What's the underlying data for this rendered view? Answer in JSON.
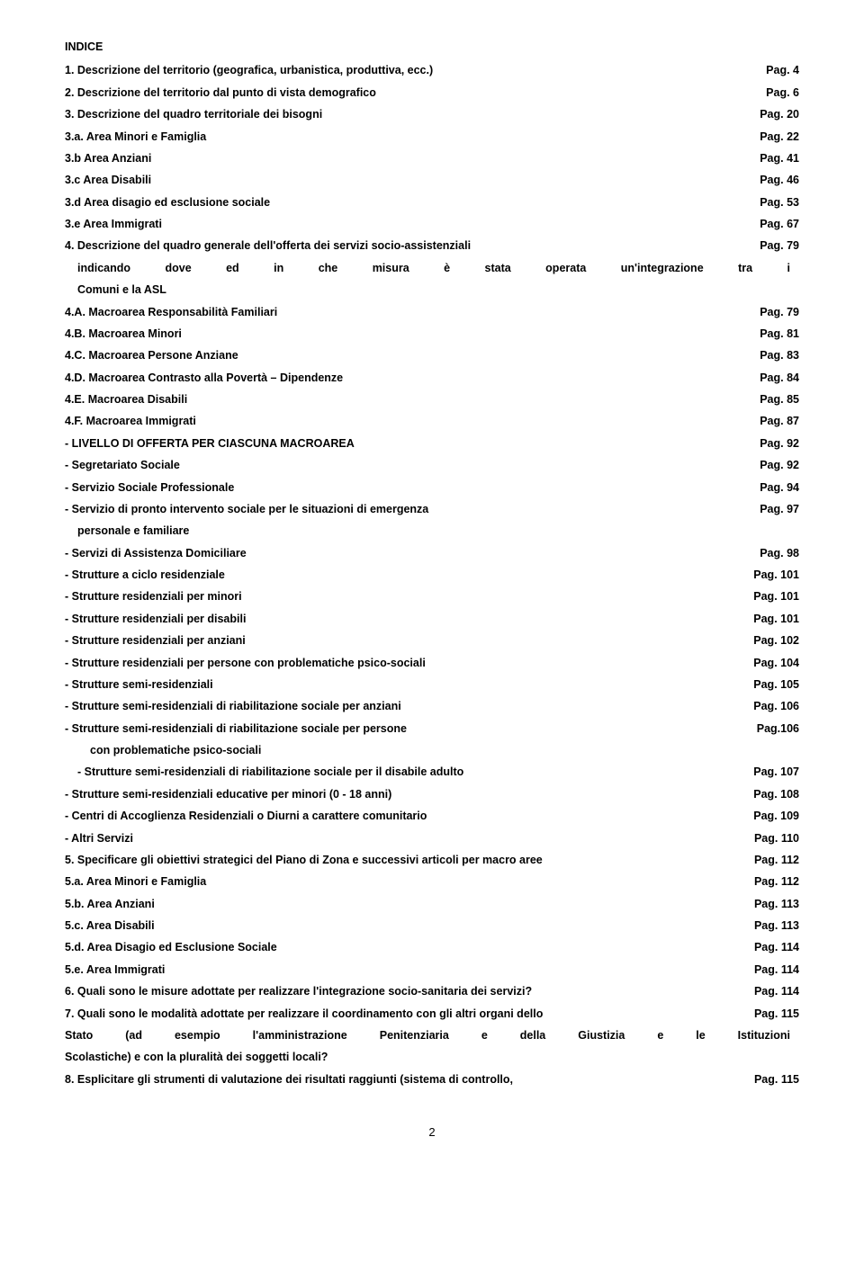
{
  "title": "INDICE",
  "entries": [
    {
      "label": "1. Descrizione del territorio (geografica, urbanistica, produttiva, ecc.)",
      "page": "Pag. 4",
      "indent": 0
    },
    {
      "label": "2. Descrizione del territorio dal punto di vista demografico",
      "page": "Pag. 6",
      "indent": 0
    },
    {
      "label": "3. Descrizione del quadro territoriale dei bisogni",
      "page": "Pag. 20",
      "indent": 0
    },
    {
      "label": "3.a. Area Minori e Famiglia",
      "page": "Pag. 22",
      "indent": 0
    },
    {
      "label": "3.b Area Anziani",
      "page": "Pag. 41",
      "indent": 0
    },
    {
      "label": "3.c Area Disabili",
      "page": "Pag. 46",
      "indent": 0
    },
    {
      "label": "3.d Area disagio ed esclusione sociale",
      "page": "Pag. 53",
      "indent": 0
    },
    {
      "label": "3.e Area Immigrati",
      "page": "Pag. 67",
      "indent": 0
    },
    {
      "label": "4. Descrizione del quadro generale dell'offerta dei servizi socio-assistenziali",
      "page": "Pag. 79",
      "indent": 0
    },
    {
      "label": "indicando dove ed in che misura è stata operata un'integrazione tra i",
      "page": "",
      "indent": 1,
      "nopage": true,
      "justify": true
    },
    {
      "label": "Comuni e la ASL",
      "page": "",
      "indent": 1,
      "nopage": true
    },
    {
      "label": "4.A. Macroarea Responsabilità Familiari",
      "page": "Pag. 79",
      "indent": 0
    },
    {
      "label": "4.B. Macroarea Minori",
      "page": "Pag. 81",
      "indent": 0
    },
    {
      "label": "4.C. Macroarea Persone Anziane",
      "page": "Pag. 83",
      "indent": 0
    },
    {
      "label": "4.D. Macroarea Contrasto alla Povertà – Dipendenze",
      "page": "Pag. 84",
      "indent": 0
    },
    {
      "label": "4.E. Macroarea Disabili",
      "page": "Pag. 85",
      "indent": 0
    },
    {
      "label": "4.F. Macroarea Immigrati",
      "page": "Pag. 87",
      "indent": 0
    },
    {
      "label": "- LIVELLO DI OFFERTA PER CIASCUNA MACROAREA",
      "page": "Pag. 92",
      "indent": 0
    },
    {
      "label": "- Segretariato Sociale",
      "page": "Pag. 92",
      "indent": 0
    },
    {
      "label": "- Servizio Sociale Professionale",
      "page": "Pag. 94",
      "indent": 0
    },
    {
      "label": "- Servizio di pronto intervento sociale per le situazioni di emergenza",
      "page": "Pag. 97",
      "indent": 0
    },
    {
      "label": "personale e familiare",
      "page": "",
      "indent": 1,
      "nopage": true
    },
    {
      "label": "- Servizi di Assistenza Domiciliare",
      "page": "Pag. 98",
      "indent": 0
    },
    {
      "label": "- Strutture a ciclo residenziale",
      "page": "Pag. 101",
      "indent": 0
    },
    {
      "label": "- Strutture residenziali per minori",
      "page": "Pag. 101",
      "indent": 0
    },
    {
      "label": "- Strutture residenziali per disabili",
      "page": "Pag. 101",
      "indent": 0
    },
    {
      "label": "- Strutture residenziali per anziani",
      "page": "Pag. 102",
      "indent": 0
    },
    {
      "label": "- Strutture residenziali per persone con problematiche psico-sociali",
      "page": "Pag. 104",
      "indent": 0
    },
    {
      "label": "- Strutture semi-residenziali",
      "page": "Pag. 105",
      "indent": 0
    },
    {
      "label": "- Strutture semi-residenziali di riabilitazione sociale per anziani",
      "page": "Pag. 106",
      "indent": 0
    },
    {
      "label": "- Strutture semi-residenziali di riabilitazione sociale per persone",
      "page": "Pag.106",
      "indent": 0
    },
    {
      "label": "con problematiche psico-sociali",
      "page": "",
      "indent": 2,
      "nopage": true
    },
    {
      "label": "- Strutture semi-residenziali di riabilitazione sociale per il disabile adulto",
      "page": "Pag. 107",
      "indent": 1
    },
    {
      "label": "- Strutture semi-residenziali educative per minori (0 - 18 anni)",
      "page": "Pag. 108",
      "indent": 0
    },
    {
      "label": "- Centri di Accoglienza Residenziali o Diurni a carattere comunitario",
      "page": "Pag. 109",
      "indent": 0
    },
    {
      "label": "- Altri Servizi",
      "page": "Pag. 110",
      "indent": 0
    },
    {
      "label": "5. Specificare gli obiettivi strategici del Piano di Zona e successivi articoli per macro aree",
      "page": "Pag. 112",
      "indent": 0
    },
    {
      "label": "5.a. Area Minori e Famiglia",
      "page": "Pag. 112",
      "indent": 0
    },
    {
      "label": "5.b. Area Anziani",
      "page": "Pag. 113",
      "indent": 0
    },
    {
      "label": "5.c. Area Disabili",
      "page": "Pag. 113",
      "indent": 0
    },
    {
      "label": "5.d. Area Disagio ed Esclusione Sociale",
      "page": "Pag. 114",
      "indent": 0
    },
    {
      "label": "5.e. Area Immigrati",
      "page": "Pag. 114",
      "indent": 0
    },
    {
      "label": "6. Quali sono le misure adottate per realizzare l'integrazione socio-sanitaria dei servizi?",
      "page": "Pag. 114",
      "indent": 0
    },
    {
      "label": "7. Quali sono le modalità adottate per realizzare il coordinamento con gli altri organi dello",
      "page": "Pag. 115",
      "indent": 0
    },
    {
      "label": "Stato (ad esempio l'amministrazione Penitenziaria e della Giustizia e le Istituzioni",
      "page": "",
      "indent": 0,
      "nopage": true,
      "justify": true
    },
    {
      "label": "Scolastiche) e con la pluralità dei soggetti locali?",
      "page": "",
      "indent": 0,
      "nopage": true
    },
    {
      "label": "8. Esplicitare gli strumenti di valutazione dei risultati raggiunti (sistema di controllo,",
      "page": "Pag. 115",
      "indent": 0
    }
  ],
  "pageNumber": "2"
}
